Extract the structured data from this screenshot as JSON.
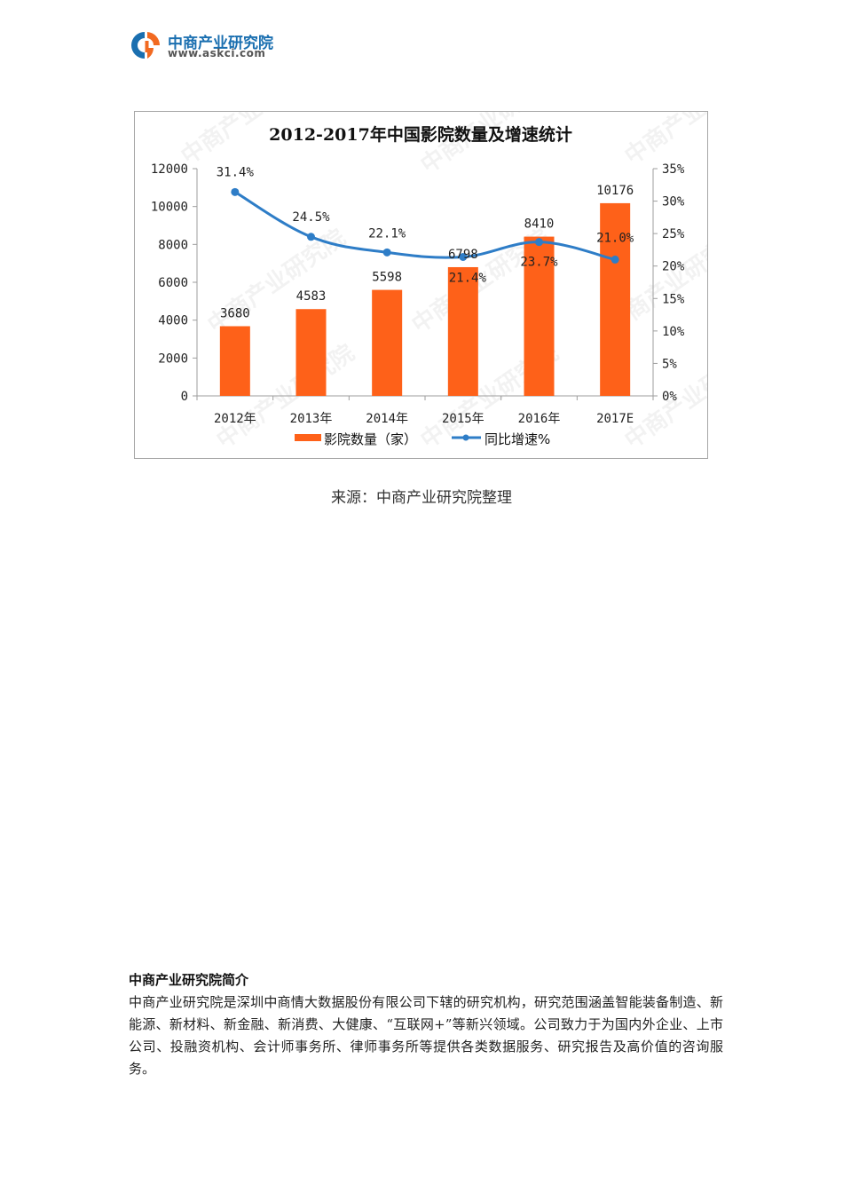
{
  "header": {
    "logo_name": "中商产业研究院",
    "logo_url": "www.askci.com",
    "logo_colors": {
      "blue": "#1a6fb0",
      "orange": "#f26a21"
    }
  },
  "chart_data": {
    "type": "bar+line",
    "title": "2012-2017年中国影院数量及增速统计",
    "categories": [
      "2012年",
      "2013年",
      "2014年",
      "2015年",
      "2016年",
      "2017E"
    ],
    "series": [
      {
        "name": "影院数量（家）",
        "type": "bar",
        "axis": "left",
        "color": "#fe6119",
        "values": [
          3680,
          4583,
          5598,
          6798,
          8410,
          10176
        ],
        "labels": [
          "3680",
          "4583",
          "5598",
          "6798",
          "8410",
          "10176"
        ]
      },
      {
        "name": "同比增速%",
        "type": "line",
        "axis": "right",
        "color": "#2e7dc7",
        "values": [
          31.4,
          24.5,
          22.1,
          21.4,
          23.7,
          21.0
        ],
        "labels": [
          "31.4%",
          "24.5%",
          "22.1%",
          "21.4%",
          "23.7%",
          "21.0%"
        ]
      }
    ],
    "left_axis": {
      "ylim": [
        0,
        12000
      ],
      "ticks": [
        "0",
        "2000",
        "4000",
        "6000",
        "8000",
        "10000",
        "12000"
      ]
    },
    "right_axis": {
      "ylim": [
        0,
        35
      ],
      "ticks": [
        "0%",
        "5%",
        "10%",
        "15%",
        "20%",
        "25%",
        "30%",
        "35%"
      ]
    },
    "xlabel": "",
    "ylabel": "",
    "grid": false,
    "legend_position": "bottom",
    "watermark": "中商产业研究院 www.askci.com/reports/"
  },
  "caption": "来源：中商产业研究院整理",
  "intro": {
    "title": "中商产业研究院简介",
    "body": "中商产业研究院是深圳中商情大数据股份有限公司下辖的研究机构，研究范围涵盖智能装备制造、新能源、新材料、新金融、新消费、大健康、“互联网+”等新兴领域。公司致力于为国内外企业、上市公司、投融资机构、会计师事务所、律师事务所等提供各类数据服务、研究报告及高价值的咨询服务。"
  }
}
